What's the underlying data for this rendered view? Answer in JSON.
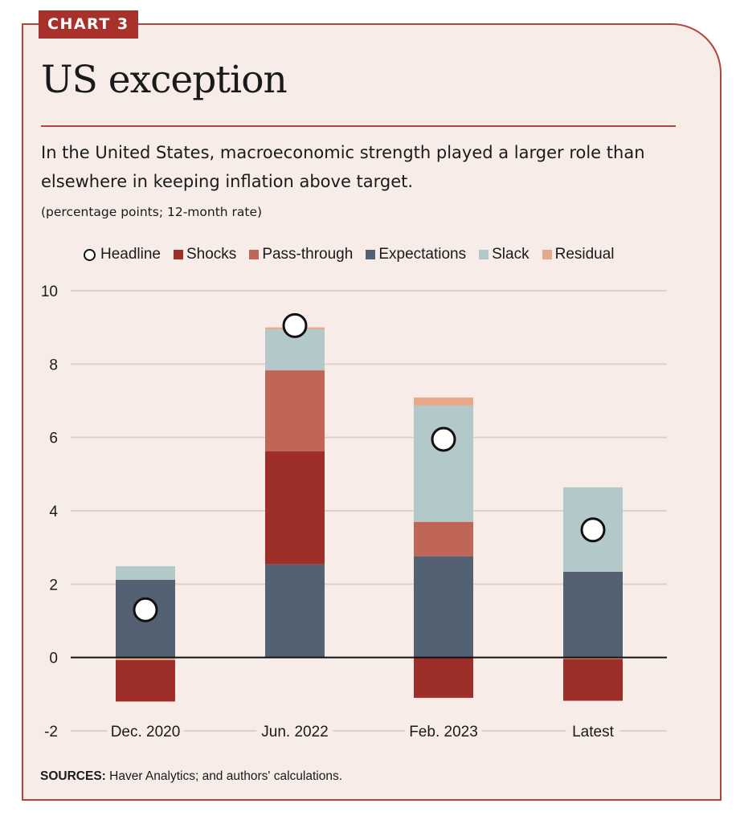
{
  "badge": "CHART 3",
  "title": "US exception",
  "subtitle": "In the United States, macroeconomic strength played a larger role than elsewhere in keeping inflation above target.",
  "units": "(percentage points; 12-month rate)",
  "sources": {
    "label": "SOURCES:",
    "text": " Haver Analytics; and authors' calculations."
  },
  "colors": {
    "Shocks": "#9e2f28",
    "Pass-through": "#bf6657",
    "Expectations": "#536173",
    "Slack": "#b3c8c8",
    "Residual": "#e8a88a"
  },
  "chart_data": {
    "type": "bar",
    "stacked": true,
    "title": "US exception",
    "xlabel": "",
    "ylabel": "percentage points; 12-month rate",
    "ylim": [
      -2,
      10
    ],
    "yticks": [
      10,
      8,
      6,
      4,
      2,
      0,
      -2
    ],
    "grid": true,
    "legend_position": "top",
    "legend": [
      "Headline",
      "Shocks",
      "Pass-through",
      "Expectations",
      "Slack",
      "Residual"
    ],
    "categories": [
      "Dec. 2020",
      "Jun. 2022",
      "Feb. 2023",
      "Latest"
    ],
    "series": [
      {
        "name": "Expectations",
        "values": [
          2.12,
          2.54,
          2.76,
          2.34
        ]
      },
      {
        "name": "Shocks",
        "values": [
          -1.13,
          3.08,
          -1.1,
          -1.14
        ]
      },
      {
        "name": "Pass-through",
        "values": [
          0.0,
          2.21,
          0.94,
          0.0
        ]
      },
      {
        "name": "Slack",
        "values": [
          0.37,
          1.12,
          3.17,
          2.3
        ]
      },
      {
        "name": "Residual",
        "values": [
          -0.07,
          0.05,
          0.22,
          -0.04
        ]
      }
    ],
    "headline": {
      "name": "Headline",
      "type": "scatter",
      "values": [
        1.3,
        9.05,
        5.95,
        3.48
      ]
    }
  }
}
